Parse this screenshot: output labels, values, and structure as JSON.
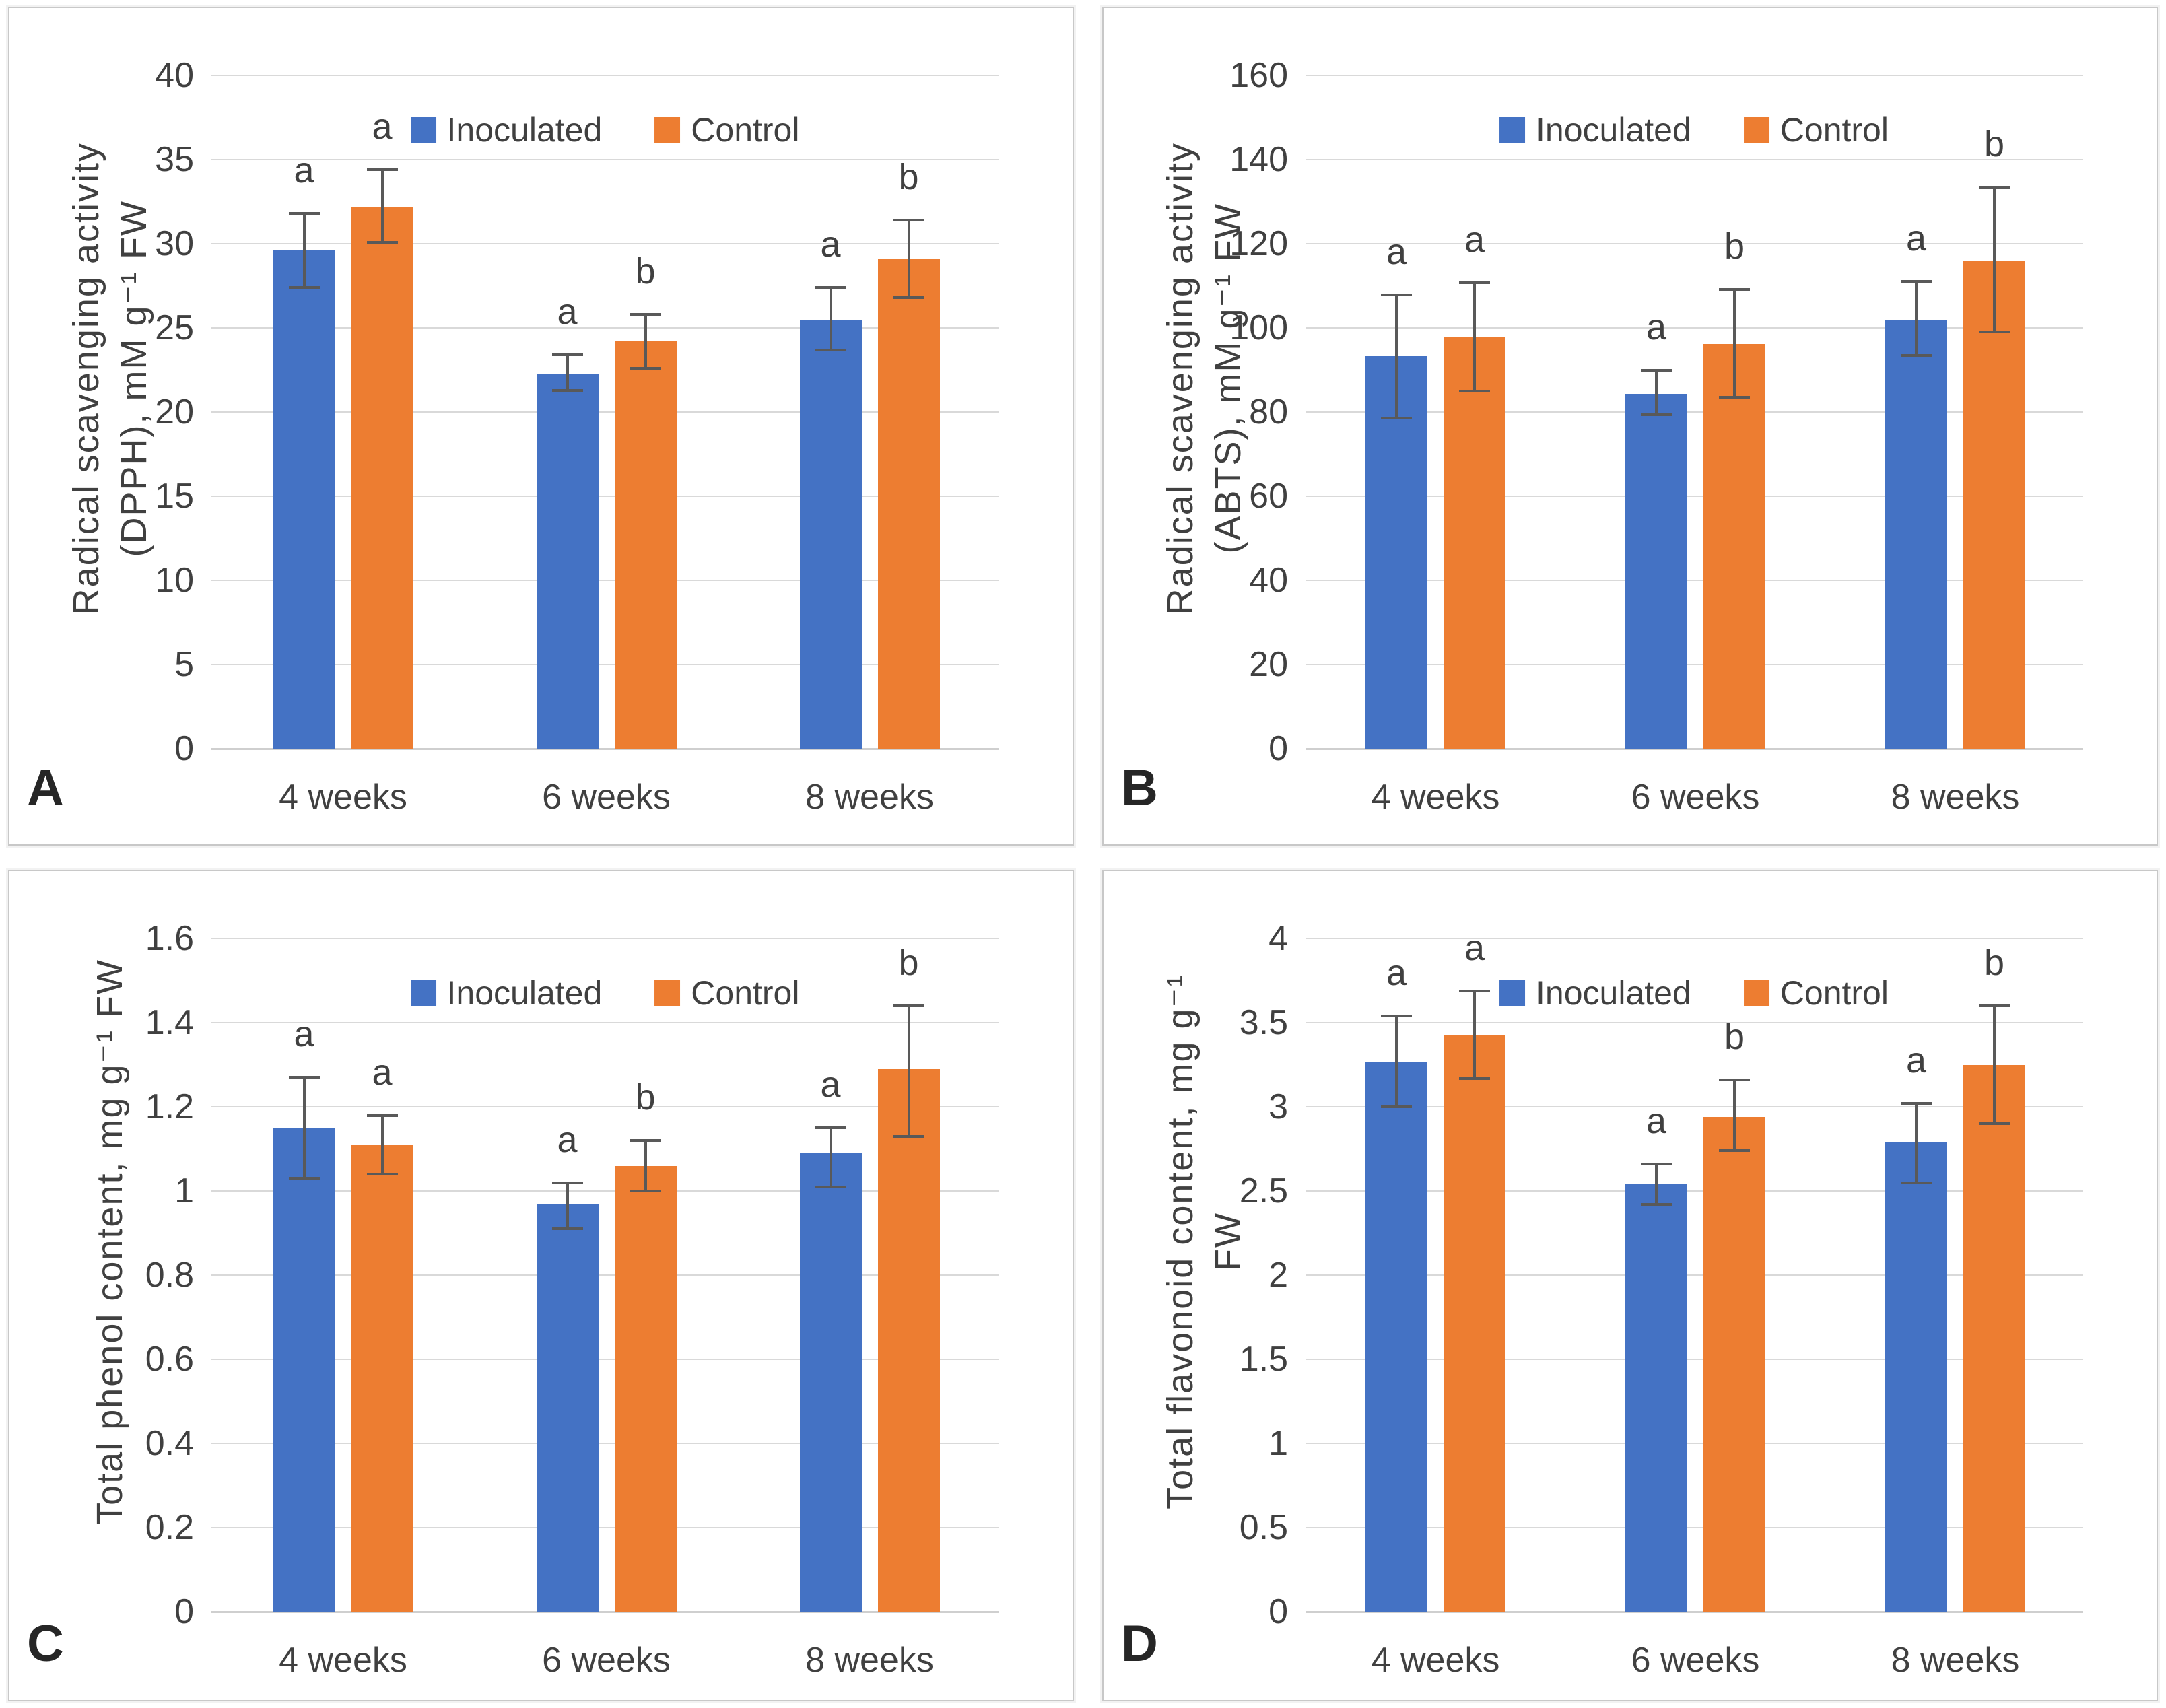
{
  "colors": {
    "inoculated": "#4472C4",
    "control": "#ED7D31",
    "gridline": "#D9D9D9",
    "axis_text": "#404040",
    "error_bar": "#595959",
    "panel_border": "#C8C8C8"
  },
  "chart_data": [
    {
      "type": "bar",
      "panel_label": "A",
      "ylabel": "Radical scavenging activity (DPPH), mM g⁻¹ FW",
      "ylabel_lines": [
        "Radical scavenging activity",
        "(DPPH), mM g⁻¹ FW"
      ],
      "xlabel": "",
      "ylim": [
        0,
        40
      ],
      "yticks": [
        "40",
        "35",
        "30",
        "25",
        "20",
        "15",
        "10",
        "5",
        "0"
      ],
      "grid": true,
      "legend_position": "top-center-inside",
      "categories": [
        "4 weeks",
        "6 weeks",
        "8 weeks"
      ],
      "series": [
        {
          "name": "Inoculated",
          "color_key": "inoculated",
          "values": [
            29.6,
            22.3,
            25.5
          ],
          "err_low": [
            27.4,
            21.3,
            23.7
          ],
          "err_high": [
            31.8,
            23.4,
            27.4
          ],
          "letters": [
            "a",
            "a",
            "a"
          ]
        },
        {
          "name": "Control",
          "color_key": "control",
          "values": [
            32.2,
            24.2,
            29.1
          ],
          "err_low": [
            30.1,
            22.6,
            26.8
          ],
          "err_high": [
            34.4,
            25.8,
            31.4
          ],
          "letters": [
            "a",
            "b",
            "b"
          ]
        }
      ]
    },
    {
      "type": "bar",
      "panel_label": "B",
      "ylabel": "Radical scavenging activity (ABTS), mM g⁻¹ FW",
      "ylabel_lines": [
        "Radical scavenging activity",
        "(ABTS), mM g⁻¹ FW"
      ],
      "xlabel": "",
      "ylim": [
        0,
        160
      ],
      "yticks": [
        "160",
        "140",
        "120",
        "100",
        "80",
        "60",
        "40",
        "20",
        "0"
      ],
      "grid": true,
      "legend_position": "top-center-inside",
      "categories": [
        "4 weeks",
        "6 weeks",
        "8 weeks"
      ],
      "series": [
        {
          "name": "Inoculated",
          "color_key": "inoculated",
          "values": [
            93.3,
            84.4,
            102.0
          ],
          "err_low": [
            78.6,
            79.4,
            93.5
          ],
          "err_high": [
            107.9,
            89.9,
            111.1
          ],
          "letters": [
            "a",
            "a",
            "a"
          ]
        },
        {
          "name": "Control",
          "color_key": "control",
          "values": [
            97.7,
            96.2,
            116.0
          ],
          "err_low": [
            84.9,
            83.6,
            99.0
          ],
          "err_high": [
            110.7,
            109.2,
            133.5
          ],
          "letters": [
            "a",
            "b",
            "b"
          ]
        }
      ]
    },
    {
      "type": "bar",
      "panel_label": "C",
      "ylabel": "Total phenol content, mg g⁻¹ FW",
      "ylabel_lines": [
        "Total phenol content, mg g⁻¹ FW"
      ],
      "xlabel": "",
      "ylim": [
        0,
        1.6
      ],
      "yticks": [
        "1.6",
        "1.4",
        "1.2",
        "1",
        "0.8",
        "0.6",
        "0.4",
        "0.2",
        "0"
      ],
      "grid": true,
      "legend_position": "top-center-inside",
      "categories": [
        "4 weeks",
        "6 weeks",
        "8 weeks"
      ],
      "series": [
        {
          "name": "Inoculated",
          "color_key": "inoculated",
          "values": [
            1.15,
            0.97,
            1.09
          ],
          "err_low": [
            1.03,
            0.91,
            1.01
          ],
          "err_high": [
            1.27,
            1.02,
            1.15
          ],
          "letters": [
            "a",
            "a",
            "a"
          ]
        },
        {
          "name": "Control",
          "color_key": "control",
          "values": [
            1.11,
            1.06,
            1.29
          ],
          "err_low": [
            1.04,
            1.0,
            1.13
          ],
          "err_high": [
            1.18,
            1.12,
            1.44
          ],
          "letters": [
            "a",
            "b",
            "b"
          ]
        }
      ]
    },
    {
      "type": "bar",
      "panel_label": "D",
      "ylabel": "Total flavonoid content, mg g⁻¹ FW",
      "ylabel_lines": [
        "Total flavonoid content, mg g⁻¹",
        "FW"
      ],
      "xlabel": "",
      "ylim": [
        0,
        4
      ],
      "yticks": [
        "4",
        "3.5",
        "3",
        "2.5",
        "2",
        "1.5",
        "1",
        "0.5",
        "0"
      ],
      "grid": true,
      "legend_position": "top-center-inside",
      "categories": [
        "4 weeks",
        "6 weeks",
        "8 weeks"
      ],
      "series": [
        {
          "name": "Inoculated",
          "color_key": "inoculated",
          "values": [
            3.27,
            2.54,
            2.79
          ],
          "err_low": [
            3.0,
            2.42,
            2.55
          ],
          "err_high": [
            3.54,
            2.66,
            3.02
          ],
          "letters": [
            "a",
            "a",
            "a"
          ]
        },
        {
          "name": "Control",
          "color_key": "control",
          "values": [
            3.43,
            2.94,
            3.25
          ],
          "err_low": [
            3.17,
            2.74,
            2.9
          ],
          "err_high": [
            3.69,
            3.16,
            3.6
          ],
          "letters": [
            "a",
            "b",
            "b"
          ]
        }
      ]
    }
  ]
}
